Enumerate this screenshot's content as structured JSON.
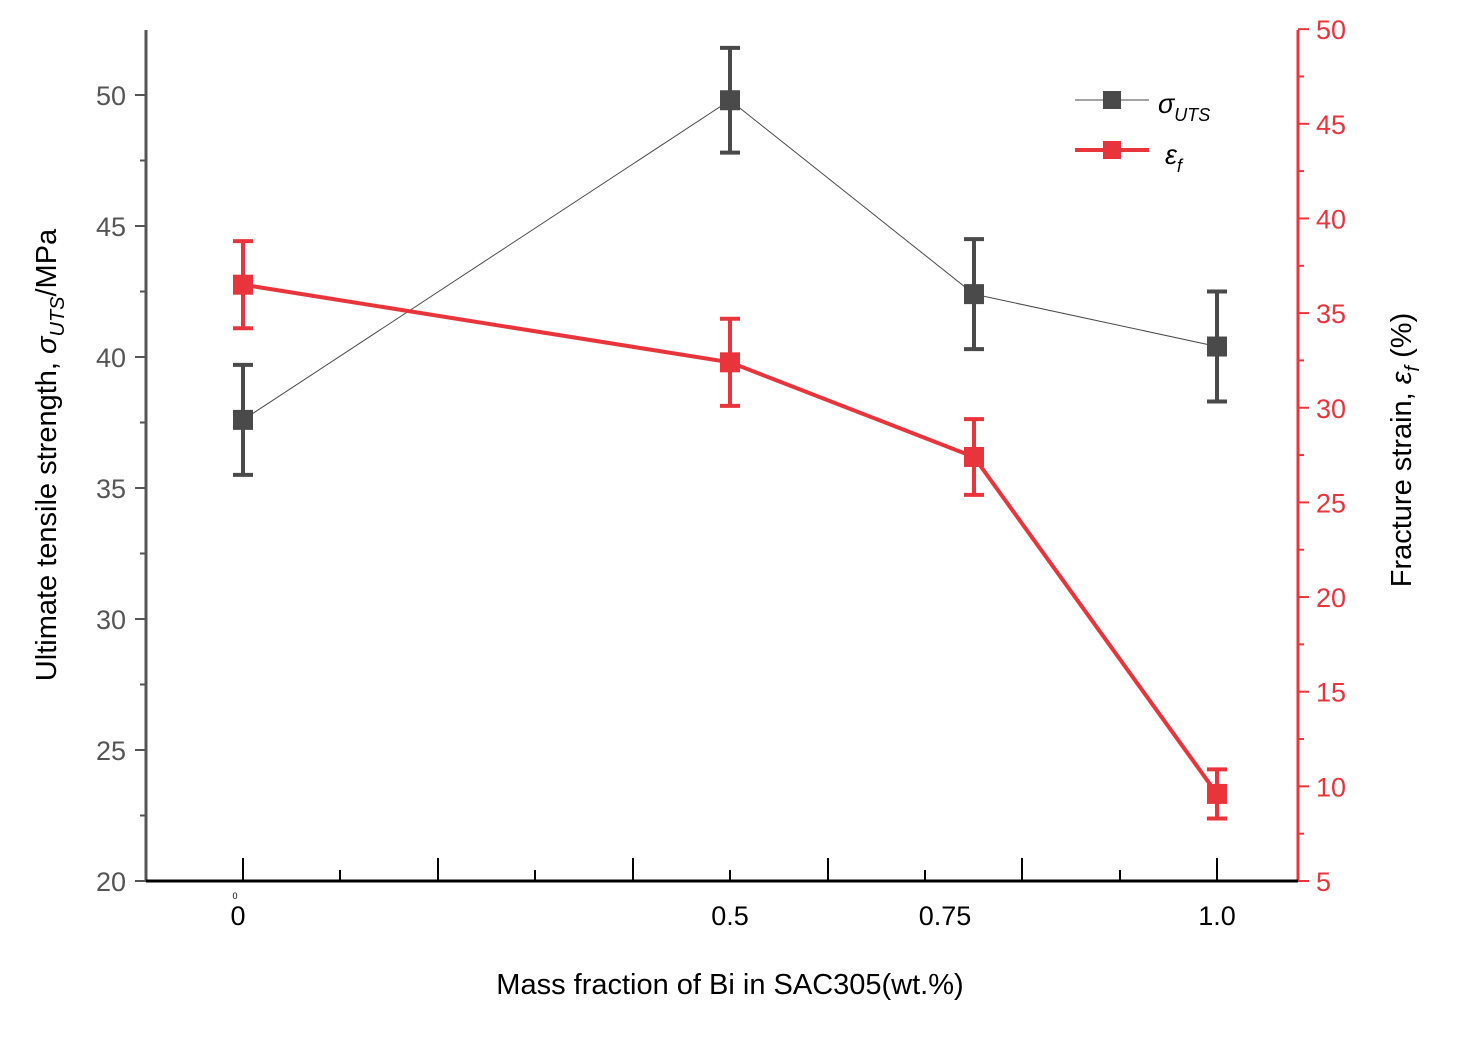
{
  "chart_data": {
    "type": "line",
    "xlabel": "Mass fraction of Bi in SAC305(wt.%)",
    "x_tick_labels": [
      "0",
      "0.5",
      "0.75",
      "1.0"
    ],
    "x_tick_stray": "0",
    "ylabel_left": {
      "prefix": "Ultimate tensile strength, ",
      "symbol": "σ",
      "sub": "UTS",
      "suffix": "/MPa"
    },
    "ylabel_right": {
      "prefix": "Fracture strain,  ",
      "symbol": "ε",
      "sub": "f",
      "suffix": " (%)"
    },
    "ylim_left": [
      20,
      52.5
    ],
    "ylim_right": [
      5,
      50
    ],
    "yticks_left": [
      20,
      25,
      30,
      35,
      40,
      45,
      50
    ],
    "yticks_right": [
      5,
      10,
      15,
      20,
      25,
      30,
      35,
      40,
      45,
      50
    ],
    "series": [
      {
        "name": "σUTS",
        "legend_symbol": "σ",
        "legend_sub": "UTS",
        "axis": "left",
        "color": "#4a4a4a",
        "x_index": [
          0,
          1,
          2,
          3
        ],
        "values": [
          37.6,
          49.8,
          42.4,
          40.4
        ],
        "errors": [
          2.1,
          2.0,
          2.1,
          2.1
        ]
      },
      {
        "name": "εf",
        "legend_symbol": "ε",
        "legend_sub": "f",
        "axis": "right",
        "color": "#e8353b",
        "x_index": [
          0,
          1,
          2,
          3
        ],
        "values": [
          36.5,
          32.4,
          27.4,
          9.6
        ],
        "errors": [
          2.3,
          2.3,
          2.0,
          1.3
        ]
      }
    ]
  }
}
